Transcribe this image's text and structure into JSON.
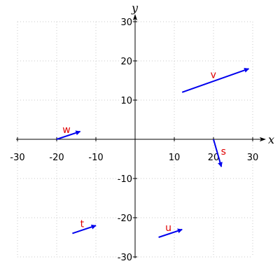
{
  "chart_data": {
    "type": "vector_field",
    "title": "",
    "xlabel": "x",
    "ylabel": "y",
    "xlim": [
      -30,
      30
    ],
    "ylim": [
      -30,
      30
    ],
    "xticks": [
      "-30",
      "-20",
      "-10",
      "10",
      "20",
      "30"
    ],
    "yticks": [
      "30",
      "20",
      "10",
      "-10",
      "-20",
      "-30"
    ],
    "xtick_values": [
      -30,
      -20,
      -10,
      10,
      20,
      30
    ],
    "ytick_values": [
      30,
      20,
      10,
      -10,
      -20,
      -30
    ],
    "grid": true,
    "vectors": [
      {
        "label": "v",
        "start": [
          12,
          12
        ],
        "end": [
          29,
          18
        ]
      },
      {
        "label": "w",
        "start": [
          -20,
          0
        ],
        "end": [
          -14,
          2
        ]
      },
      {
        "label": "s",
        "start": [
          20,
          0
        ],
        "end": [
          22,
          -7
        ]
      },
      {
        "label": "t",
        "start": [
          -16,
          -24
        ],
        "end": [
          -10,
          -22
        ]
      },
      {
        "label": "u",
        "start": [
          6,
          -25
        ],
        "end": [
          12,
          -23
        ]
      }
    ],
    "colors": {
      "vector": "#0000ee",
      "label": "#e00000",
      "grid": "#c8c8c8",
      "axis": "#000000"
    }
  }
}
